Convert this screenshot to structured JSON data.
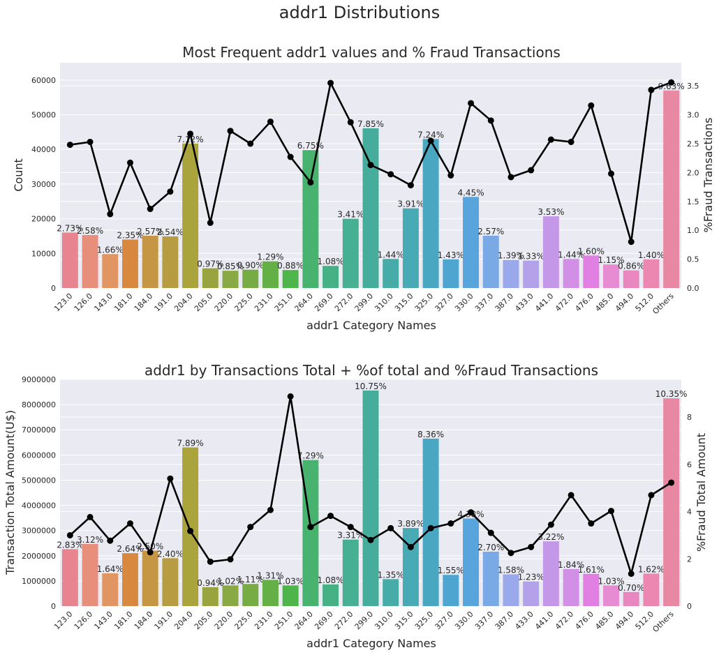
{
  "figure_title": "addr1 Distributions",
  "chart_data": [
    {
      "type": "bar",
      "title": "Most Frequent addr1 values and % Fraud Transactions",
      "xlabel": "addr1 Category Names",
      "ylabel": "Count",
      "y2label": "%Fraud Transactions",
      "categories": [
        "123.0",
        "126.0",
        "143.0",
        "181.0",
        "184.0",
        "191.0",
        "204.0",
        "205.0",
        "220.0",
        "225.0",
        "231.0",
        "251.0",
        "264.0",
        "269.0",
        "272.0",
        "299.0",
        "310.0",
        "315.0",
        "325.0",
        "327.0",
        "330.0",
        "337.0",
        "387.0",
        "433.0",
        "441.0",
        "472.0",
        "476.0",
        "485.0",
        "494.0",
        "512.0",
        "Others"
      ],
      "values": [
        16000,
        15300,
        9800,
        14000,
        15100,
        14900,
        41700,
        5700,
        5000,
        5300,
        7700,
        5200,
        39800,
        6400,
        20000,
        46100,
        8400,
        23000,
        43000,
        8300,
        26300,
        15100,
        8100,
        7900,
        20700,
        8400,
        9400,
        6800,
        5100,
        8300,
        57000
      ],
      "labels": [
        "2.73%",
        "2.58%",
        "1.66%",
        "2.35%",
        "2.57%",
        "2.54%",
        "7.12%",
        "0.97%",
        "0.85%",
        "0.90%",
        "1.29%",
        "0.88%",
        "6.75%",
        "1.08%",
        "3.41%",
        "7.85%",
        "1.44%",
        "3.91%",
        "7.24%",
        "1.43%",
        "4.45%",
        "2.57%",
        "1.39%",
        "1.33%",
        "3.53%",
        "1.44%",
        "1.60%",
        "1.15%",
        "0.86%",
        "1.40%",
        "9.63%"
      ],
      "line": [
        2.48,
        2.53,
        1.28,
        2.17,
        1.37,
        1.67,
        2.67,
        1.13,
        2.72,
        2.5,
        2.88,
        2.27,
        1.83,
        3.55,
        2.87,
        2.13,
        1.97,
        1.78,
        2.55,
        1.95,
        3.2,
        2.9,
        1.92,
        2.04,
        2.57,
        2.53,
        3.16,
        1.98,
        0.8,
        3.43,
        3.56
      ],
      "ylim": [
        0,
        65000
      ],
      "yticks": [
        0,
        10000,
        20000,
        30000,
        40000,
        50000,
        60000
      ],
      "y2lim": [
        0,
        3.9
      ],
      "y2ticks": [
        "0.0",
        "0.5",
        "1.0",
        "1.5",
        "2.0",
        "2.5",
        "3.0",
        "3.5"
      ],
      "grid": true
    },
    {
      "type": "bar",
      "title": "addr1 by Transactions Total + %of total and %Fraud Transactions",
      "xlabel": "addr1 Category Names",
      "ylabel": "Transaction Total Amount(U$)",
      "y2label": "%Fraud Total Amount",
      "categories": [
        "123.0",
        "126.0",
        "143.0",
        "181.0",
        "184.0",
        "191.0",
        "204.0",
        "205.0",
        "220.0",
        "225.0",
        "231.0",
        "251.0",
        "264.0",
        "269.0",
        "272.0",
        "299.0",
        "310.0",
        "315.0",
        "325.0",
        "327.0",
        "330.0",
        "337.0",
        "387.0",
        "433.0",
        "441.0",
        "472.0",
        "476.0",
        "485.0",
        "494.0",
        "512.0",
        "Others"
      ],
      "values": [
        2260000,
        2470000,
        1300000,
        2100000,
        2200000,
        1900000,
        6300000,
        750000,
        820000,
        880000,
        1040000,
        820000,
        5800000,
        860000,
        2640000,
        8560000,
        1070000,
        3100000,
        6650000,
        1240000,
        3480000,
        2160000,
        1260000,
        980000,
        2570000,
        1470000,
        1280000,
        820000,
        560000,
        1290000,
        8250000
      ],
      "labels": [
        "2.83%",
        "3.12%",
        "1.64%",
        "2.64%",
        "2.50%",
        "2.40%",
        "7.89%",
        "0.94%",
        "1.02%",
        "1.11%",
        "1.31%",
        "1.03%",
        "7.29%",
        "1.08%",
        "3.31%",
        "10.75%",
        "1.35%",
        "3.89%",
        "8.36%",
        "1.55%",
        "4.38%",
        "2.70%",
        "1.58%",
        "1.23%",
        "3.22%",
        "1.84%",
        "1.61%",
        "1.03%",
        "0.70%",
        "1.62%",
        "10.35%"
      ],
      "line": [
        3.0,
        3.77,
        2.77,
        3.5,
        2.28,
        5.4,
        3.18,
        1.88,
        1.98,
        3.35,
        4.07,
        8.88,
        3.35,
        3.82,
        3.35,
        2.8,
        3.3,
        2.5,
        3.3,
        3.5,
        3.97,
        3.1,
        2.25,
        2.5,
        3.45,
        4.7,
        3.5,
        4.03,
        1.37,
        4.7,
        5.23
      ],
      "ylim": [
        0,
        9000000
      ],
      "yticks": [
        0,
        1000000,
        2000000,
        3000000,
        4000000,
        5000000,
        6000000,
        7000000,
        8000000,
        9000000
      ],
      "y2lim": [
        0,
        9.6
      ],
      "y2ticks": [
        "0",
        "2",
        "4",
        "6",
        "8"
      ],
      "grid": true
    }
  ],
  "palette": [
    "#e8848f",
    "#e88f7c",
    "#e09563",
    "#d8893f",
    "#c59745",
    "#b89c42",
    "#aba33c",
    "#9aa43e",
    "#88a943",
    "#77ac45",
    "#64b047",
    "#4eb54b",
    "#48b26f",
    "#47b186",
    "#47b092",
    "#46ad9d",
    "#47aca8",
    "#48aab5",
    "#49a7c2",
    "#4ea5cf",
    "#58a4dc",
    "#7aaae6",
    "#9aa9eb",
    "#b3a1ea",
    "#c497e8",
    "#d18fe5",
    "#e17fe3",
    "#e78bd2",
    "#ea87c0",
    "#eb87b0",
    "#e988a2"
  ]
}
